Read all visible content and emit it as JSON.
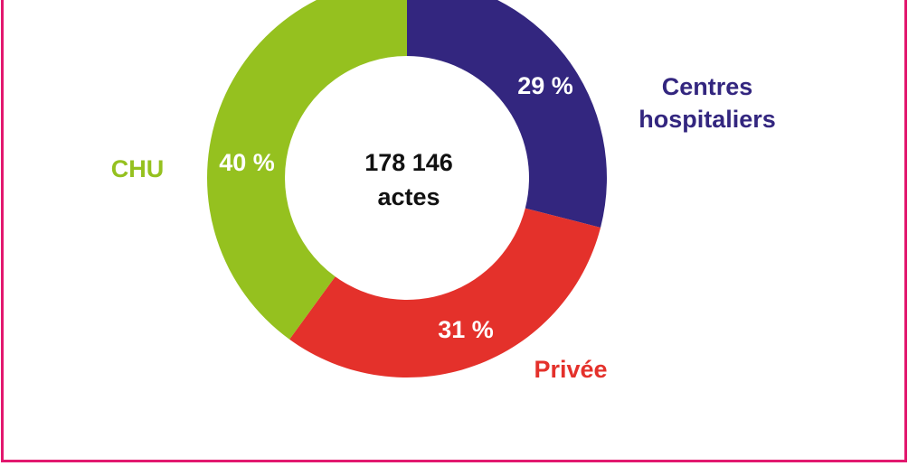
{
  "chart_data": {
    "type": "donut",
    "categories": [
      "Centres hospitaliers",
      "Privée",
      "CHU"
    ],
    "values": [
      29,
      31,
      40
    ],
    "value_labels": [
      "29 %",
      "31 %",
      "40 %"
    ],
    "colors": [
      "#33267f",
      "#e4312b",
      "#95c11f"
    ],
    "center_text": [
      "178 146",
      "actes"
    ]
  }
}
